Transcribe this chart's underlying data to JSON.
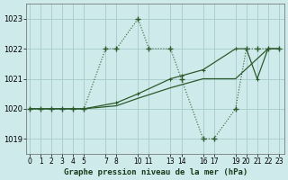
{
  "title": "Graphe pression niveau de la mer (hPa)",
  "bg_color": "#ceeaea",
  "grid_color": "#aacece",
  "line_color": "#2d5a2d",
  "ylim": [
    1018.5,
    1023.5
  ],
  "yticks": [
    1019,
    1020,
    1021,
    1022,
    1023
  ],
  "xlim": [
    -0.3,
    23.5
  ],
  "xtick_shown_labels": [
    "0",
    "1",
    "2",
    "3",
    "4",
    "5",
    "7",
    "8",
    "10",
    "11",
    "13",
    "14",
    "16",
    "17",
    "19",
    "20",
    "21",
    "22",
    "23"
  ],
  "xtick_shown_pos": [
    0,
    1,
    2,
    3,
    4,
    5,
    7,
    8,
    10,
    11,
    13,
    14,
    16,
    17,
    19,
    20,
    21,
    22,
    23
  ],
  "series_dotted_x": [
    0,
    1,
    2,
    3,
    4,
    5,
    7,
    8,
    10,
    11,
    13,
    14,
    16,
    17,
    19,
    20,
    21,
    22,
    23
  ],
  "series_dotted_y": [
    1020.0,
    1020.0,
    1020.0,
    1020.0,
    1020.0,
    1020.0,
    1022.0,
    1022.0,
    1023.0,
    1022.0,
    1022.0,
    1021.0,
    1019.0,
    1019.0,
    1020.0,
    1022.0,
    1022.0,
    1022.0,
    1022.0
  ],
  "series_solid1_x": [
    0,
    5,
    8,
    10,
    13,
    14,
    16,
    19,
    20,
    21,
    22,
    23
  ],
  "series_solid1_y": [
    1020.0,
    1020.0,
    1020.2,
    1020.5,
    1021.0,
    1021.1,
    1021.3,
    1022.0,
    1022.0,
    1021.0,
    1022.0,
    1022.0
  ],
  "series_solid2_x": [
    0,
    5,
    8,
    10,
    13,
    14,
    16,
    19,
    22,
    23
  ],
  "series_solid2_y": [
    1020.0,
    1020.0,
    1020.1,
    1020.35,
    1020.7,
    1020.8,
    1021.0,
    1021.0,
    1022.0,
    1022.0
  ]
}
